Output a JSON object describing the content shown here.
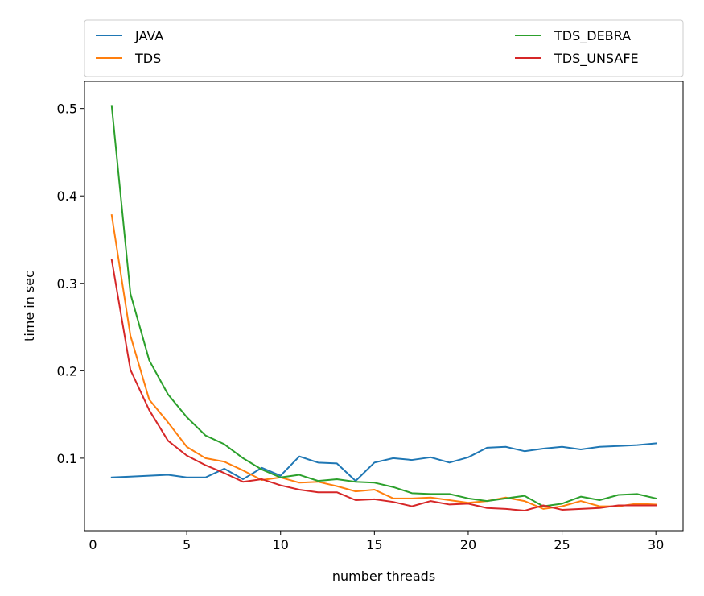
{
  "chart_data": {
    "type": "line",
    "title": "",
    "xlabel": "number threads",
    "ylabel": "time in sec",
    "xlim": [
      -0.45,
      31.45
    ],
    "ylim": [
      0.017,
      0.531
    ],
    "xticks": [
      0,
      5,
      10,
      15,
      20,
      25,
      30
    ],
    "yticks": [
      0.1,
      0.2,
      0.3,
      0.4,
      0.5
    ],
    "xtick_labels": [
      "0",
      "5",
      "10",
      "15",
      "20",
      "25",
      "30"
    ],
    "ytick_labels": [
      "0.1",
      "0.2",
      "0.3",
      "0.4",
      "0.5"
    ],
    "grid": false,
    "legend_position": "above plot, two columns",
    "x": [
      1,
      2,
      3,
      4,
      5,
      6,
      7,
      8,
      9,
      10,
      11,
      12,
      13,
      14,
      15,
      16,
      17,
      18,
      19,
      20,
      21,
      22,
      23,
      24,
      25,
      26,
      27,
      28,
      29,
      30
    ],
    "series": [
      {
        "name": "JAVA",
        "color": "#1f77b4",
        "values": [
          0.078,
          0.079,
          0.08,
          0.081,
          0.078,
          0.078,
          0.088,
          0.076,
          0.089,
          0.08,
          0.102,
          0.095,
          0.094,
          0.074,
          0.095,
          0.1,
          0.098,
          0.101,
          0.095,
          0.101,
          0.112,
          0.113,
          0.108,
          0.111,
          0.113,
          0.11,
          0.113,
          0.114,
          0.115,
          0.117
        ]
      },
      {
        "name": "TDS",
        "color": "#ff7f0e",
        "values": [
          0.378,
          0.24,
          0.167,
          0.141,
          0.113,
          0.1,
          0.096,
          0.086,
          0.075,
          0.078,
          0.072,
          0.073,
          0.068,
          0.062,
          0.064,
          0.054,
          0.054,
          0.055,
          0.052,
          0.049,
          0.051,
          0.055,
          0.051,
          0.042,
          0.045,
          0.051,
          0.045,
          0.045,
          0.048,
          0.047
        ]
      },
      {
        "name": "TDS_DEBRA",
        "color": "#2ca02c",
        "values": [
          0.503,
          0.288,
          0.212,
          0.173,
          0.147,
          0.126,
          0.116,
          0.1,
          0.087,
          0.078,
          0.081,
          0.074,
          0.076,
          0.073,
          0.072,
          0.067,
          0.06,
          0.059,
          0.059,
          0.054,
          0.051,
          0.054,
          0.057,
          0.045,
          0.048,
          0.056,
          0.052,
          0.058,
          0.059,
          0.054
        ]
      },
      {
        "name": "TDS_UNSAFE",
        "color": "#d62728",
        "values": [
          0.327,
          0.201,
          0.155,
          0.12,
          0.103,
          0.092,
          0.083,
          0.073,
          0.076,
          0.069,
          0.064,
          0.061,
          0.061,
          0.052,
          0.053,
          0.05,
          0.045,
          0.051,
          0.047,
          0.048,
          0.043,
          0.042,
          0.04,
          0.046,
          0.041,
          0.042,
          0.043,
          0.046,
          0.046,
          0.046
        ]
      }
    ]
  }
}
